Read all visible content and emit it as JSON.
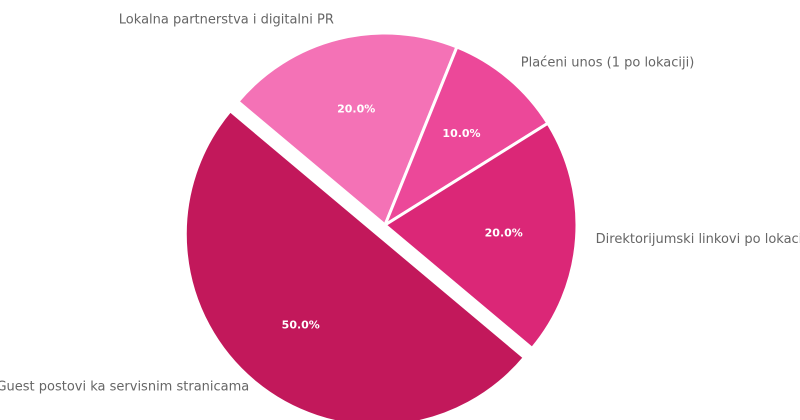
{
  "chart_data": {
    "type": "pie",
    "categories": [
      "Guest postovi ka servisnim stranicama",
      "Lokalna partnerstva i digitalni PR",
      "Plaćeni unos (1 po lokaciji)",
      "Direktorijumski linkovi po lokaciji"
    ],
    "values": [
      50,
      20,
      10,
      20
    ],
    "value_labels": [
      "50.0%",
      "20.0%",
      "10.0%",
      "20.0%"
    ],
    "colors": [
      "#c2185b",
      "#f472b6",
      "#ec4899",
      "#db2777"
    ],
    "explode": [
      true,
      false,
      false,
      false
    ]
  }
}
